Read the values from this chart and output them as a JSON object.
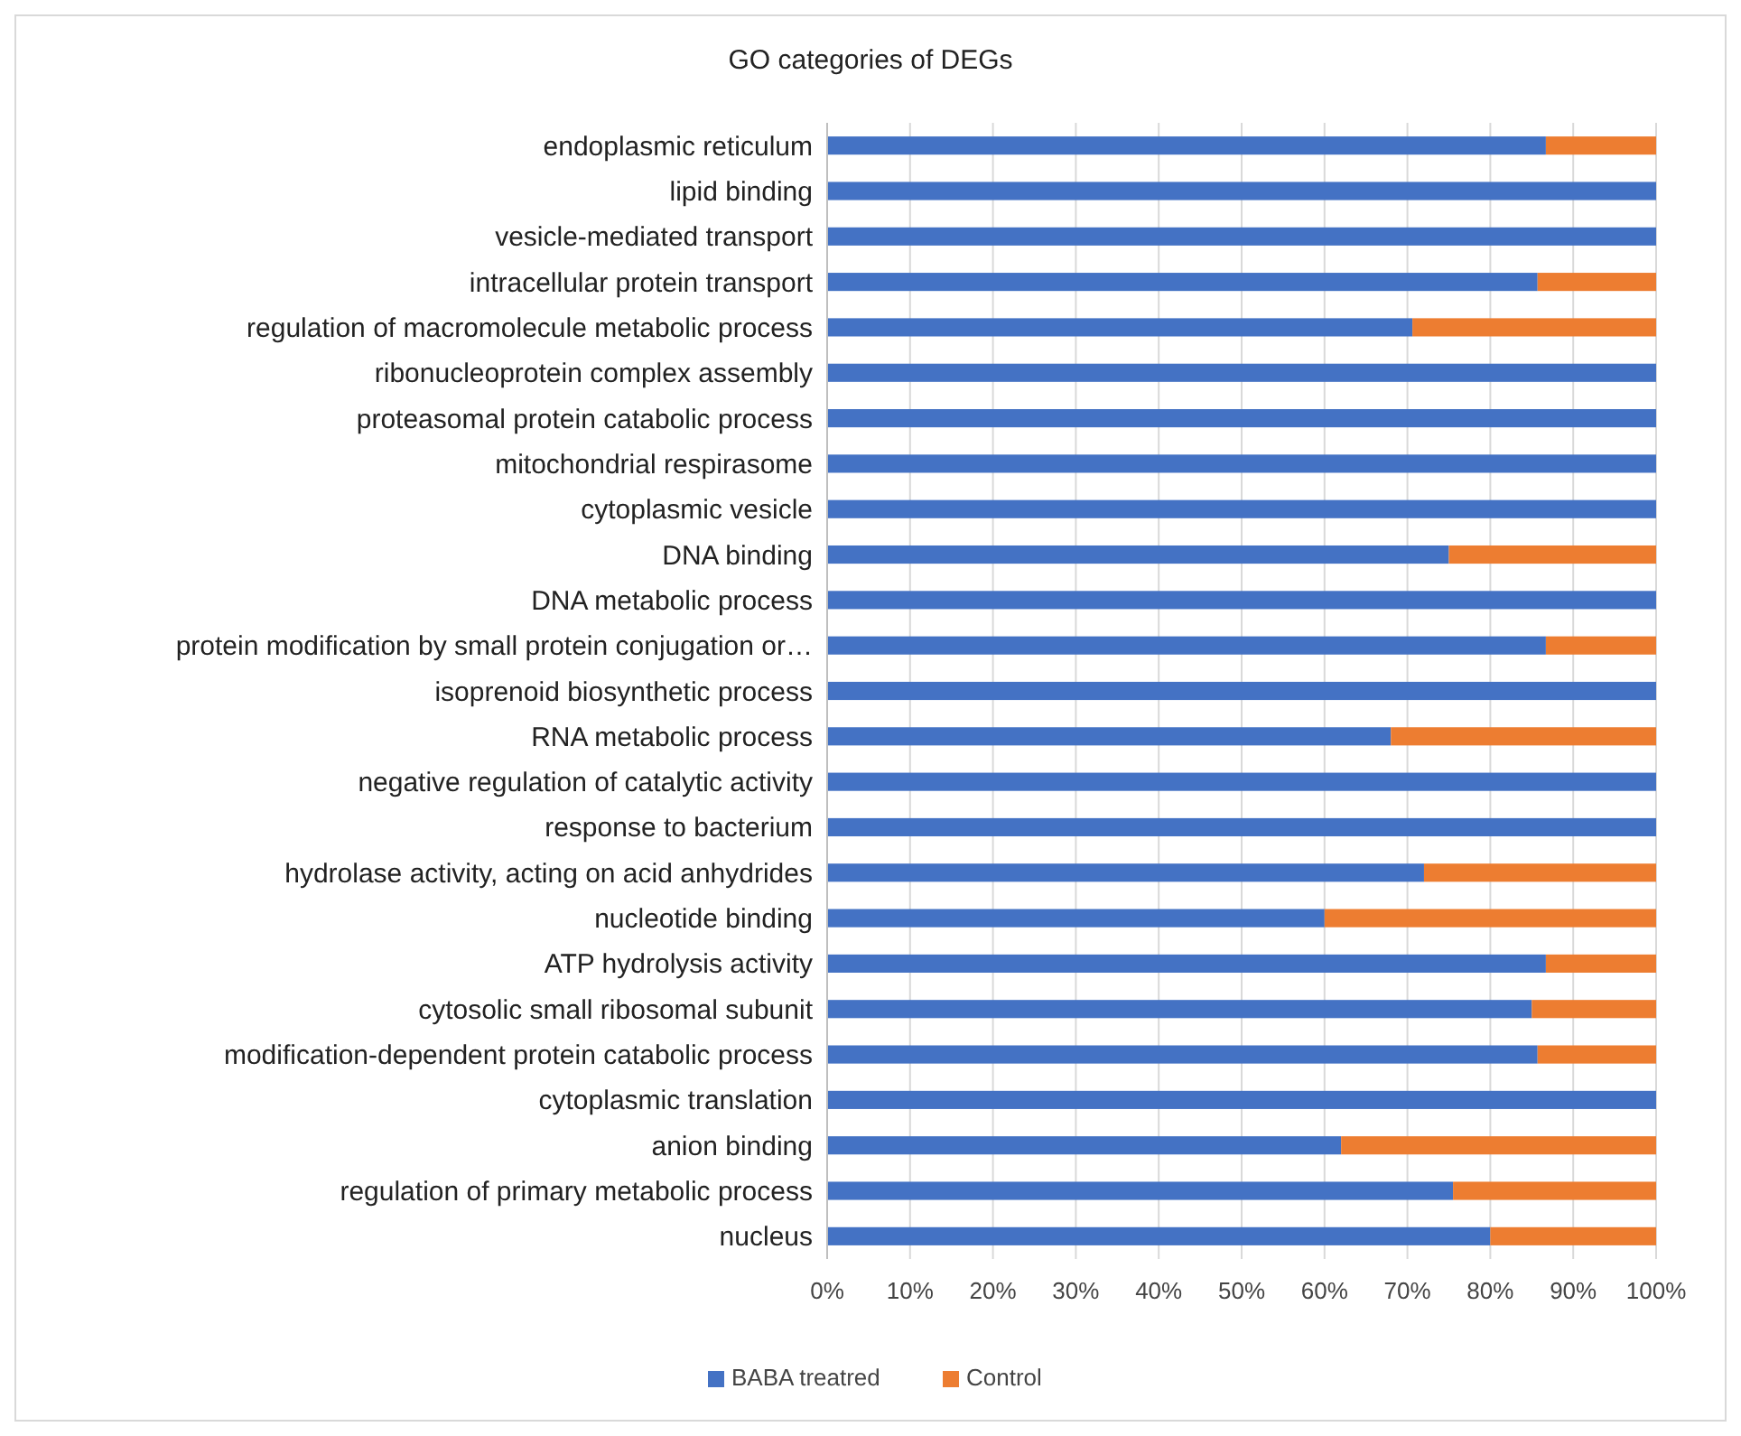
{
  "chart_data": {
    "type": "bar",
    "title": "GO categories of DEGs",
    "orientation": "horizontal",
    "stacked": true,
    "categories": [
      "endoplasmic reticulum",
      "lipid binding",
      "vesicle-mediated transport",
      "intracellular protein transport",
      "regulation of macromolecule metabolic process",
      "ribonucleoprotein complex assembly",
      "proteasomal protein catabolic process",
      "mitochondrial respirasome",
      "cytoplasmic vesicle",
      "DNA binding",
      "DNA metabolic process",
      "protein modification by small protein conjugation or…",
      "isoprenoid biosynthetic process",
      "RNA metabolic process",
      "negative regulation of catalytic activity",
      "response to bacterium",
      "hydrolase activity, acting on acid anhydrides",
      "nucleotide binding",
      "ATP hydrolysis activity",
      "cytosolic small ribosomal subunit",
      "modification-dependent protein catabolic process",
      "cytoplasmic translation",
      "anion binding",
      "regulation of primary metabolic process",
      "nucleus"
    ],
    "series": [
      {
        "name": "BABA treatred",
        "color": "#4472c4",
        "values": [
          86.7,
          100,
          100,
          85.7,
          70.6,
          100,
          100,
          100,
          100,
          75,
          100,
          86.7,
          100,
          68,
          100,
          100,
          72,
          60,
          86.7,
          85,
          85.7,
          100,
          62,
          75.5,
          80
        ]
      },
      {
        "name": "Control",
        "color": "#ed7d31",
        "values": [
          13.3,
          0,
          0,
          14.3,
          29.4,
          0,
          0,
          0,
          0,
          25,
          0,
          13.3,
          0,
          32,
          0,
          0,
          28,
          40,
          13.3,
          15,
          14.3,
          0,
          38,
          24.5,
          20
        ]
      }
    ],
    "xlim": [
      0,
      100
    ],
    "xticks": [
      {
        "value": 0,
        "label": "0%"
      },
      {
        "value": 10,
        "label": "10%"
      },
      {
        "value": 20,
        "label": "20%"
      },
      {
        "value": 30,
        "label": "30%"
      },
      {
        "value": 40,
        "label": "40%"
      },
      {
        "value": 50,
        "label": "50%"
      },
      {
        "value": 60,
        "label": "60%"
      },
      {
        "value": 70,
        "label": "70%"
      },
      {
        "value": 80,
        "label": "80%"
      },
      {
        "value": 90,
        "label": "90%"
      },
      {
        "value": 100,
        "label": "100%"
      }
    ],
    "grid": "x",
    "legend": "bottom"
  }
}
